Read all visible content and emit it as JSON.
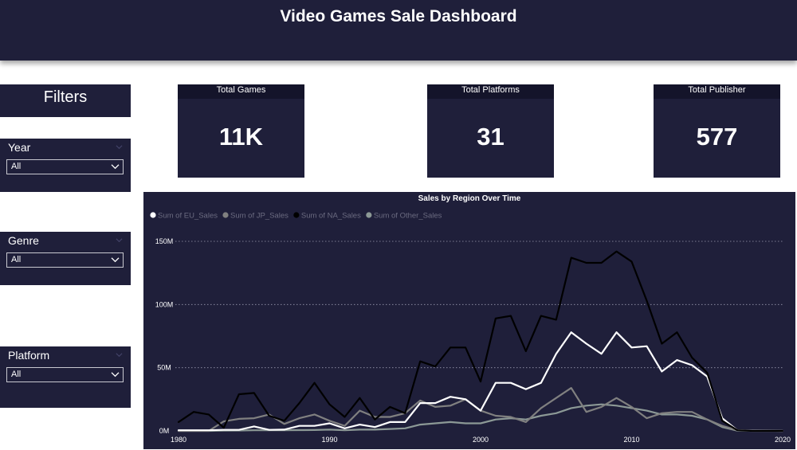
{
  "header": {
    "title": "Video Games Sale Dashboard"
  },
  "filters": {
    "title": "Filters",
    "slicers": [
      {
        "label": "Year",
        "value": "All"
      },
      {
        "label": "Genre",
        "value": "All"
      },
      {
        "label": "Platform",
        "value": "All"
      }
    ]
  },
  "kpis": [
    {
      "label": "Total Games",
      "value": "11K"
    },
    {
      "label": "Total Platforms",
      "value": "31"
    },
    {
      "label": "Total Publisher",
      "value": "577"
    }
  ],
  "colors": {
    "panel": "#1f1f3a",
    "eu": "#ffffff",
    "jp": "#808080",
    "na": "#000000",
    "other": "#8c9996",
    "legend_text": "#6b6b80",
    "axis_text": "#ffffff"
  },
  "chart_data": {
    "type": "line",
    "title": "Sales by Region Over Time",
    "xlabel": "",
    "ylabel": "",
    "xlim": [
      1980,
      2020
    ],
    "ylim": [
      0,
      150
    ],
    "xticks": [
      1980,
      1990,
      2000,
      2010,
      2020
    ],
    "xtick_labels": [
      "1980",
      "1990",
      "2000",
      "2010",
      "2020"
    ],
    "yticks": [
      0,
      50,
      100,
      150
    ],
    "ytick_labels": [
      "0M",
      "50M",
      "100M",
      "150M"
    ],
    "gridlines": "horizontal dotted",
    "legend_position": "top-left",
    "x": [
      1980,
      1981,
      1982,
      1983,
      1984,
      1985,
      1986,
      1987,
      1988,
      1989,
      1990,
      1991,
      1992,
      1993,
      1994,
      1995,
      1996,
      1997,
      1998,
      1999,
      2000,
      2001,
      2002,
      2003,
      2004,
      2005,
      2006,
      2007,
      2008,
      2009,
      2010,
      2011,
      2012,
      2013,
      2014,
      2015,
      2016,
      2017,
      2018,
      2019,
      2020
    ],
    "series": [
      {
        "name": "Sum of EU_Sales",
        "key": "eu",
        "values": [
          0.5,
          0.5,
          0.5,
          0.8,
          0.8,
          3.5,
          0.8,
          1,
          4,
          4,
          6,
          2,
          5,
          3,
          7,
          7,
          22,
          22,
          27,
          25,
          16,
          38,
          38,
          33,
          38,
          61,
          78,
          69,
          61,
          78,
          66,
          67,
          47,
          56,
          52,
          43,
          10,
          0.5,
          0.2,
          0.1,
          0
        ]
      },
      {
        "name": "Sum of JP_Sales",
        "key": "jp",
        "values": [
          0,
          0,
          0,
          7.5,
          9.5,
          10,
          13,
          5.5,
          10,
          13,
          8,
          4,
          16,
          11,
          11,
          14,
          24,
          19,
          20,
          25,
          16,
          12,
          11,
          7,
          18,
          26,
          34,
          15,
          19,
          26,
          19,
          10,
          14,
          15,
          15,
          9,
          4,
          0.5,
          0,
          0,
          0
        ]
      },
      {
        "name": "Sum of NA_Sales",
        "key": "na",
        "values": [
          7,
          15,
          13,
          2.5,
          29,
          30,
          12,
          8,
          22,
          38,
          21,
          11,
          26,
          9,
          19,
          14,
          55,
          51,
          66,
          66,
          39,
          89,
          91,
          63,
          91,
          88,
          137,
          133,
          133,
          142,
          134,
          103,
          69,
          78,
          58,
          46,
          8,
          0.5,
          0,
          0,
          0
        ]
      },
      {
        "name": "Sum of Other_Sales",
        "key": "other",
        "values": [
          0,
          0,
          0,
          0.2,
          0.3,
          0.5,
          0.5,
          0.5,
          0.6,
          0.7,
          1,
          0.5,
          1,
          1,
          1.5,
          2,
          5,
          6,
          7,
          6,
          6,
          9,
          10,
          9,
          12,
          14,
          18,
          20,
          21,
          20,
          18,
          16,
          13,
          13,
          12,
          9,
          3,
          0.2,
          0,
          0,
          0
        ]
      }
    ],
    "draw_order": [
      "other",
      "jp",
      "eu",
      "na"
    ]
  }
}
